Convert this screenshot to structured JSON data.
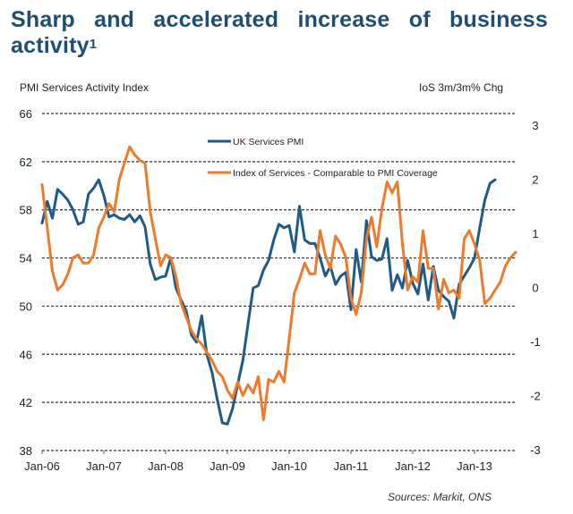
{
  "title": "Sharp and accelerated increase of business activity",
  "title_footnote": "1",
  "source": "Sources: Markit, ONS",
  "chart_data": {
    "type": "line",
    "title": "Sharp and accelerated increase of business activity",
    "ylabel_left": "PMI Services Activity Index",
    "ylabel_right": "IoS 3m/3m% Chg",
    "xlabel": "",
    "ylim_left": [
      38,
      66
    ],
    "ylim_right": [
      -3,
      3
    ],
    "yticks_left": [
      "38",
      "42",
      "46",
      "50",
      "54",
      "58",
      "62",
      "66"
    ],
    "yticks_right": [
      "-3",
      "-2",
      "-1",
      "0",
      "1",
      "2",
      "3"
    ],
    "xticks": [
      "Jan-06",
      "Jan-07",
      "Jan-08",
      "Jan-09",
      "Jan-10",
      "Jan-11",
      "Jan-12",
      "Jan-13"
    ],
    "x_start": "Jan-06",
    "x_frequency": "monthly",
    "grid": "horizontal dashed",
    "legend_position": "top-center",
    "series": [
      {
        "name": "UK Services PMI",
        "axis": "left",
        "color": "#1f5b86",
        "values": [
          56.9,
          58.7,
          57.3,
          59.7,
          59.3,
          58.8,
          58.0,
          56.8,
          57.0,
          59.3,
          59.8,
          60.5,
          59.2,
          57.4,
          57.6,
          57.3,
          57.2,
          57.6,
          57.0,
          57.5,
          56.6,
          53.5,
          52.2,
          52.4,
          52.5,
          54.0,
          51.5,
          50.5,
          49.6,
          47.6,
          47.0,
          49.2,
          46.0,
          44.5,
          42.3,
          40.3,
          40.2,
          41.5,
          43.5,
          45.5,
          48.5,
          51.5,
          51.7,
          53.0,
          53.8,
          55.5,
          56.8,
          56.5,
          56.7,
          54.5,
          58.3,
          55.5,
          55.2,
          55.2,
          54.0,
          52.5,
          53.3,
          51.8,
          52.5,
          52.8,
          49.7,
          54.7,
          52.0,
          57.1,
          54.1,
          53.8,
          53.9,
          55.6,
          51.3,
          52.6,
          51.5,
          53.8,
          51.9,
          51.0,
          53.5,
          50.5,
          53.3,
          51.3,
          50.8,
          50.4,
          49.0,
          51.8,
          52.5,
          53.2,
          54.0,
          56.5,
          58.8,
          60.2,
          60.5
        ]
      },
      {
        "name": "Index of Services - Comparable to PMI Coverage",
        "axis": "right",
        "color": "#ec7b2e",
        "values": [
          1.9,
          1.1,
          0.3,
          -0.05,
          0.05,
          0.25,
          0.55,
          0.6,
          0.45,
          0.45,
          0.6,
          1.1,
          1.3,
          1.55,
          1.4,
          2.0,
          2.3,
          2.6,
          2.45,
          2.35,
          2.3,
          1.4,
          0.9,
          0.4,
          0.6,
          0.55,
          0.2,
          -0.3,
          -0.55,
          -0.8,
          -0.95,
          -1.05,
          -1.2,
          -1.35,
          -1.55,
          -1.65,
          -1.9,
          -2.05,
          -1.75,
          -2.0,
          -1.8,
          -1.95,
          -1.65,
          -2.45,
          -1.7,
          -1.75,
          -1.55,
          -1.75,
          -0.95,
          -0.1,
          0.15,
          0.45,
          0.25,
          0.25,
          1.05,
          0.6,
          0.35,
          0.95,
          0.8,
          0.55,
          -0.2,
          -0.5,
          -0.1,
          0.9,
          1.3,
          0.75,
          1.45,
          1.95,
          1.75,
          1.95,
          0.8,
          -0.05,
          0.2,
          0.1,
          1.05,
          0.35,
          0.35,
          -0.4,
          0.15,
          -0.1,
          -0.05,
          -0.2,
          0.9,
          1.05,
          0.8,
          0.5,
          -0.3,
          -0.2,
          -0.05,
          0.1,
          0.4,
          0.55,
          0.65
        ]
      }
    ]
  }
}
